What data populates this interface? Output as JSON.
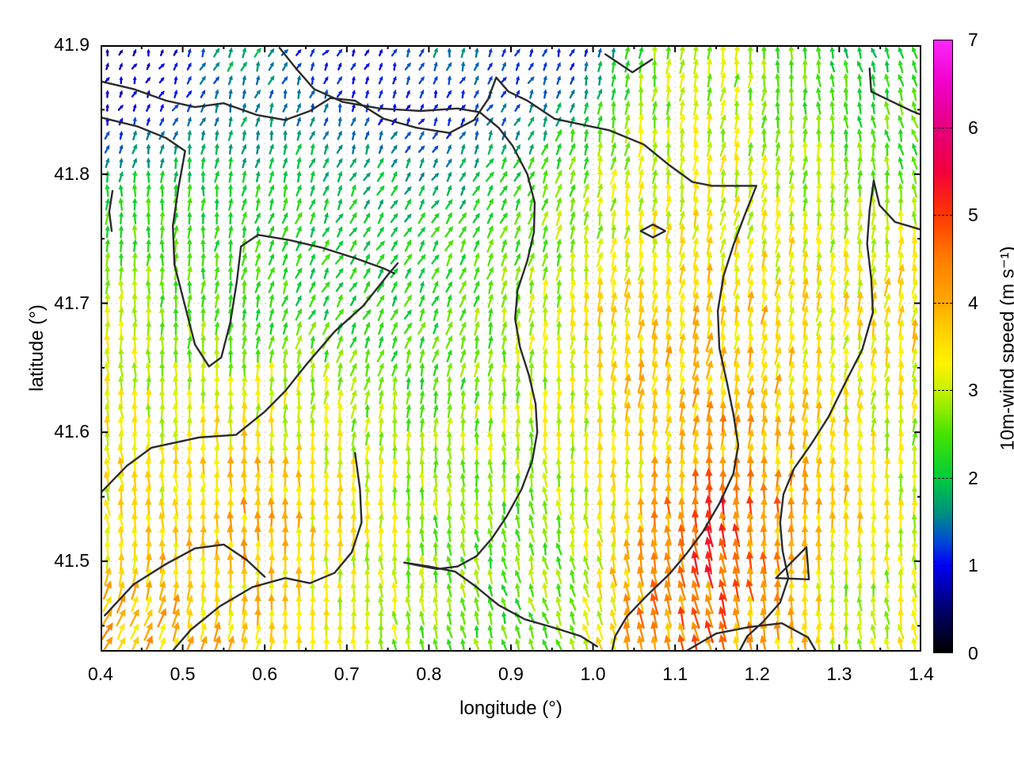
{
  "chart_data": {
    "type": "vector_field",
    "title": "",
    "xlabel": "longitude (°)",
    "ylabel": "latitude (°)",
    "xlim": [
      0.4,
      1.4
    ],
    "ylim": [
      41.43,
      41.9
    ],
    "grid": "dotted-major",
    "xticks": [
      {
        "v": 0.4,
        "label": "0.4"
      },
      {
        "v": 0.5,
        "label": "0.5"
      },
      {
        "v": 0.6,
        "label": "0.6"
      },
      {
        "v": 0.7,
        "label": "0.7"
      },
      {
        "v": 0.8,
        "label": "0.8"
      },
      {
        "v": 0.9,
        "label": "0.9"
      },
      {
        "v": 1.0,
        "label": "1.0"
      },
      {
        "v": 1.1,
        "label": "1.1"
      },
      {
        "v": 1.2,
        "label": "1.2"
      },
      {
        "v": 1.3,
        "label": "1.3"
      },
      {
        "v": 1.4,
        "label": "1.4"
      }
    ],
    "yticks": [
      {
        "v": 41.5,
        "label": "41.5"
      },
      {
        "v": 41.6,
        "label": "41.6"
      },
      {
        "v": 41.7,
        "label": "41.7"
      },
      {
        "v": 41.8,
        "label": "41.8"
      },
      {
        "v": 41.9,
        "label": "41.9"
      }
    ],
    "xminor_step": 0.05,
    "yminor_step": 0.05,
    "colorbar": {
      "label": "10m-wind speed (m s⁻¹)",
      "min": 0,
      "max": 7,
      "ticks": [
        "0",
        "1",
        "2",
        "3",
        "4",
        "5",
        "6",
        "7"
      ],
      "stops": [
        [
          0.0,
          "#000000"
        ],
        [
          0.5,
          "#00006e"
        ],
        [
          1.0,
          "#0000f5"
        ],
        [
          1.3,
          "#0050d0"
        ],
        [
          1.6,
          "#00917f"
        ],
        [
          2.0,
          "#00cc3c"
        ],
        [
          2.5,
          "#46e400"
        ],
        [
          3.0,
          "#c8f000"
        ],
        [
          3.3,
          "#fff200"
        ],
        [
          3.7,
          "#ffcf00"
        ],
        [
          4.0,
          "#ffa800"
        ],
        [
          4.5,
          "#ff7d00"
        ],
        [
          5.0,
          "#ff3800"
        ],
        [
          5.5,
          "#f2003c"
        ],
        [
          6.0,
          "#e4007d"
        ],
        [
          6.5,
          "#f000c8"
        ],
        [
          7.0,
          "#fa28fa"
        ]
      ]
    },
    "field": {
      "comment": "coarse 13x10 sampling of the quiver field; speed in m/s, dir in deg clockwise from north",
      "lons": [
        0.4,
        0.483,
        0.567,
        0.65,
        0.733,
        0.817,
        0.9,
        0.983,
        1.067,
        1.15,
        1.233,
        1.317,
        1.4
      ],
      "lats": [
        41.9,
        41.848,
        41.796,
        41.743,
        41.691,
        41.639,
        41.587,
        41.535,
        41.482,
        41.43
      ],
      "speed": [
        [
          0.7,
          0.8,
          1.9,
          1.1,
          0.9,
          1.6,
          1.2,
          0.9,
          2.6,
          2.9,
          2.4,
          2.1,
          2.0
        ],
        [
          0.9,
          1.1,
          1.6,
          1.4,
          1.1,
          1.0,
          1.4,
          2.0,
          2.9,
          3.0,
          2.7,
          2.4,
          2.5
        ],
        [
          2.0,
          2.1,
          2.0,
          2.1,
          1.9,
          1.7,
          2.2,
          2.7,
          3.1,
          3.2,
          3.0,
          2.8,
          2.3
        ],
        [
          2.6,
          2.4,
          2.3,
          2.2,
          2.1,
          2.3,
          2.6,
          3.0,
          3.4,
          3.5,
          3.3,
          3.2,
          3.4
        ],
        [
          3.0,
          2.7,
          2.4,
          2.3,
          2.2,
          2.4,
          2.8,
          3.2,
          3.6,
          3.7,
          3.5,
          3.4,
          3.6
        ],
        [
          3.2,
          2.9,
          3.0,
          3.1,
          2.5,
          2.4,
          2.9,
          3.2,
          3.7,
          3.9,
          3.6,
          3.2,
          3.3
        ],
        [
          3.4,
          3.3,
          3.6,
          3.3,
          3.1,
          2.8,
          2.9,
          3.1,
          3.5,
          4.1,
          3.8,
          3.4,
          2.9
        ],
        [
          3.3,
          3.4,
          3.9,
          3.6,
          3.2,
          2.7,
          2.6,
          2.9,
          3.9,
          5.0,
          4.2,
          3.5,
          3.0
        ],
        [
          3.7,
          3.8,
          3.7,
          3.4,
          3.1,
          2.6,
          2.5,
          2.8,
          4.3,
          4.7,
          4.0,
          2.8,
          3.2
        ],
        [
          3.9,
          3.8,
          3.6,
          3.3,
          3.0,
          2.6,
          2.4,
          3.0,
          4.2,
          4.4,
          3.8,
          3.0,
          3.6
        ]
      ],
      "dir": [
        [
          15,
          30,
          20,
          40,
          25,
          10,
          35,
          20,
          8,
          10,
          0,
          -15,
          -25
        ],
        [
          25,
          28,
          18,
          12,
          20,
          30,
          25,
          12,
          8,
          10,
          5,
          -8,
          -20
        ],
        [
          5,
          2,
          8,
          22,
          30,
          32,
          28,
          15,
          10,
          10,
          8,
          5,
          -18
        ],
        [
          2,
          2,
          12,
          28,
          33,
          28,
          18,
          10,
          12,
          12,
          10,
          8,
          10
        ],
        [
          0,
          0,
          8,
          26,
          30,
          22,
          10,
          6,
          10,
          12,
          10,
          10,
          12
        ],
        [
          -4,
          0,
          2,
          6,
          16,
          12,
          2,
          5,
          10,
          10,
          10,
          8,
          10
        ],
        [
          -8,
          -5,
          0,
          2,
          5,
          0,
          -5,
          0,
          8,
          6,
          8,
          5,
          5
        ],
        [
          -10,
          -5,
          -2,
          0,
          0,
          -5,
          -10,
          -8,
          -5,
          -12,
          -2,
          5,
          0
        ],
        [
          18,
          8,
          2,
          0,
          -5,
          -10,
          -15,
          -15,
          -10,
          -15,
          -5,
          -5,
          -10
        ],
        [
          35,
          25,
          12,
          5,
          -5,
          -12,
          -18,
          -20,
          -12,
          -15,
          -8,
          -5,
          -15
        ]
      ]
    },
    "contours": [
      {
        "points": [
          [
            0.4,
            41.872
          ],
          [
            0.44,
            41.866
          ],
          [
            0.48,
            41.857
          ],
          [
            0.515,
            41.852
          ],
          [
            0.55,
            41.855
          ],
          [
            0.59,
            41.846
          ],
          [
            0.625,
            41.842
          ],
          [
            0.655,
            41.849
          ],
          [
            0.68,
            41.859
          ],
          [
            0.71,
            41.857
          ],
          [
            0.745,
            41.843
          ],
          [
            0.785,
            41.836
          ],
          [
            0.825,
            41.832
          ],
          [
            0.855,
            41.842
          ],
          [
            0.872,
            41.858
          ],
          [
            0.882,
            41.875
          ],
          [
            0.897,
            41.864
          ],
          [
            0.92,
            41.857
          ],
          [
            0.953,
            41.843
          ],
          [
            0.99,
            41.838
          ],
          [
            1.02,
            41.834
          ],
          [
            1.062,
            41.823
          ],
          [
            1.093,
            41.807
          ],
          [
            1.121,
            41.794
          ],
          [
            1.145,
            41.791
          ],
          [
            1.199,
            41.791
          ],
          [
            1.184,
            41.767
          ],
          [
            1.171,
            41.745
          ],
          [
            1.159,
            41.721
          ],
          [
            1.152,
            41.694
          ],
          [
            1.154,
            41.665
          ],
          [
            1.163,
            41.639
          ],
          [
            1.171,
            41.614
          ],
          [
            1.177,
            41.59
          ],
          [
            1.171,
            41.568
          ],
          [
            1.155,
            41.546
          ],
          [
            1.134,
            41.523
          ],
          [
            1.114,
            41.506
          ],
          [
            1.093,
            41.49
          ],
          [
            1.065,
            41.473
          ],
          [
            1.041,
            41.457
          ],
          [
            1.027,
            41.442
          ],
          [
            1.023,
            41.43
          ]
        ]
      },
      {
        "points": [
          [
            0.618,
            41.898
          ],
          [
            0.638,
            41.882
          ],
          [
            0.66,
            41.866
          ],
          [
            0.695,
            41.856
          ],
          [
            0.74,
            41.851
          ],
          [
            0.79,
            41.849
          ],
          [
            0.835,
            41.851
          ],
          [
            0.862,
            41.848
          ],
          [
            0.885,
            41.836
          ],
          [
            0.902,
            41.822
          ],
          [
            0.92,
            41.8
          ],
          [
            0.929,
            41.778
          ],
          [
            0.928,
            41.755
          ],
          [
            0.92,
            41.733
          ],
          [
            0.908,
            41.71
          ],
          [
            0.905,
            41.688
          ],
          [
            0.911,
            41.666
          ],
          [
            0.922,
            41.644
          ],
          [
            0.93,
            41.622
          ],
          [
            0.932,
            41.6
          ],
          [
            0.926,
            41.578
          ],
          [
            0.913,
            41.556
          ],
          [
            0.895,
            41.535
          ],
          [
            0.877,
            41.518
          ],
          [
            0.858,
            41.504
          ],
          [
            0.835,
            41.496
          ],
          [
            0.81,
            41.494
          ],
          [
            0.785,
            41.497
          ],
          [
            0.77,
            41.499
          ],
          [
            0.8,
            41.496
          ],
          [
            0.832,
            41.492
          ],
          [
            0.856,
            41.481
          ],
          [
            0.885,
            41.466
          ],
          [
            0.917,
            41.455
          ],
          [
            0.95,
            41.449
          ],
          [
            0.985,
            41.442
          ],
          [
            1.005,
            41.434
          ]
        ]
      },
      {
        "points": [
          [
            0.4,
            41.844
          ],
          [
            0.445,
            41.837
          ],
          [
            0.48,
            41.828
          ],
          [
            0.503,
            41.818
          ],
          [
            0.495,
            41.79
          ],
          [
            0.488,
            41.76
          ],
          [
            0.49,
            41.73
          ],
          [
            0.502,
            41.7
          ],
          [
            0.515,
            41.668
          ],
          [
            0.532,
            41.651
          ],
          [
            0.547,
            41.658
          ],
          [
            0.558,
            41.685
          ],
          [
            0.566,
            41.717
          ],
          [
            0.571,
            41.744
          ],
          [
            0.592,
            41.753
          ],
          [
            0.63,
            41.749
          ],
          [
            0.67,
            41.743
          ],
          [
            0.71,
            41.735
          ],
          [
            0.745,
            41.727
          ],
          [
            0.758,
            41.723
          ]
        ]
      },
      {
        "points": [
          [
            0.4,
            41.553
          ],
          [
            0.432,
            41.574
          ],
          [
            0.462,
            41.588
          ],
          [
            0.52,
            41.596
          ],
          [
            0.565,
            41.598
          ],
          [
            0.6,
            41.616
          ],
          [
            0.625,
            41.632
          ],
          [
            0.65,
            41.652
          ],
          [
            0.685,
            41.678
          ],
          [
            0.72,
            41.698
          ],
          [
            0.75,
            41.722
          ],
          [
            0.762,
            41.731
          ]
        ]
      },
      {
        "points": [
          [
            0.487,
            41.43
          ],
          [
            0.51,
            41.447
          ],
          [
            0.545,
            41.465
          ],
          [
            0.585,
            41.48
          ],
          [
            0.625,
            41.487
          ],
          [
            0.655,
            41.483
          ],
          [
            0.685,
            41.491
          ],
          [
            0.706,
            41.507
          ],
          [
            0.718,
            41.53
          ],
          [
            0.716,
            41.556
          ],
          [
            0.71,
            41.584
          ]
        ]
      },
      {
        "points": [
          [
            0.405,
            41.458
          ],
          [
            0.44,
            41.482
          ],
          [
            0.48,
            41.498
          ],
          [
            0.515,
            41.51
          ],
          [
            0.55,
            41.513
          ],
          [
            0.578,
            41.501
          ],
          [
            0.6,
            41.488
          ]
        ]
      },
      {
        "points": [
          [
            1.4,
            41.757
          ],
          [
            1.368,
            41.763
          ],
          [
            1.349,
            41.776
          ],
          [
            1.342,
            41.795
          ],
          [
            1.337,
            41.772
          ],
          [
            1.334,
            41.746
          ],
          [
            1.339,
            41.719
          ],
          [
            1.341,
            41.693
          ],
          [
            1.328,
            41.664
          ],
          [
            1.307,
            41.638
          ],
          [
            1.287,
            41.612
          ],
          [
            1.265,
            41.59
          ],
          [
            1.245,
            41.572
          ],
          [
            1.232,
            41.552
          ],
          [
            1.228,
            41.53
          ],
          [
            1.231,
            41.508
          ],
          [
            1.238,
            41.487
          ],
          [
            1.228,
            41.468
          ],
          [
            1.207,
            41.453
          ],
          [
            1.188,
            41.442
          ],
          [
            1.178,
            41.43
          ]
        ]
      },
      {
        "points": [
          [
            1.115,
            41.431
          ],
          [
            1.15,
            41.444
          ],
          [
            1.19,
            41.449
          ],
          [
            1.23,
            41.452
          ],
          [
            1.262,
            41.441
          ],
          [
            1.272,
            41.43
          ]
        ]
      },
      {
        "points": [
          [
            1.223,
            41.487
          ],
          [
            1.26,
            41.511
          ],
          [
            1.263,
            41.486
          ],
          [
            1.223,
            41.487
          ]
        ]
      },
      {
        "points": [
          [
            1.058,
            41.756
          ],
          [
            1.073,
            41.761
          ],
          [
            1.088,
            41.756
          ],
          [
            1.073,
            41.751
          ],
          [
            1.058,
            41.756
          ]
        ]
      },
      {
        "points": [
          [
            1.337,
            41.882
          ],
          [
            1.339,
            41.864
          ],
          [
            1.388,
            41.849
          ],
          [
            1.4,
            41.846
          ]
        ]
      },
      {
        "points": [
          [
            1.015,
            41.893
          ],
          [
            1.048,
            41.879
          ],
          [
            1.072,
            41.889
          ]
        ]
      },
      {
        "points": [
          [
            0.4145,
            41.787
          ],
          [
            0.4105,
            41.771
          ],
          [
            0.4135,
            41.756
          ]
        ]
      }
    ]
  }
}
